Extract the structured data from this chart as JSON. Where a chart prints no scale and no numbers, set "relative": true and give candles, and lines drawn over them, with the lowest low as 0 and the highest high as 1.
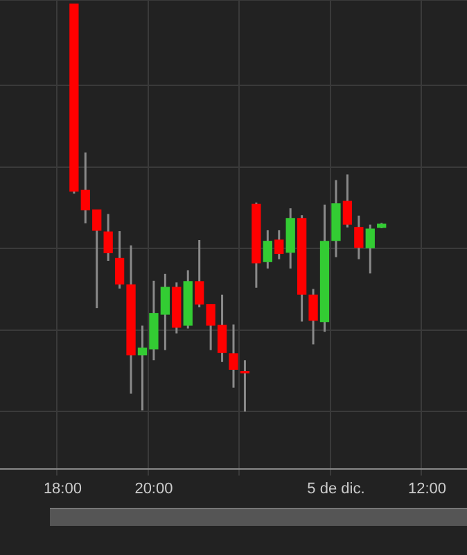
{
  "chart_data": {
    "type": "candlestick",
    "relative": true,
    "grid": true,
    "categories": [
      null,
      null,
      null,
      null,
      null,
      "18:00",
      null,
      null,
      null,
      null,
      null,
      null,
      null,
      "20:00",
      null,
      null,
      null,
      null,
      null,
      null,
      null,
      null,
      null,
      null,
      null,
      null,
      null,
      null,
      null,
      "5 de dic.",
      null,
      null,
      null,
      null,
      null,
      null,
      null,
      "12:00",
      null,
      null,
      null
    ],
    "ohlc": [
      null,
      null,
      null,
      null,
      null,
      null,
      [
        1,
        1,
        0.535,
        0.541
      ],
      [
        0.543,
        0.636,
        0.462,
        0.495
      ],
      [
        0.495,
        0.495,
        0.254,
        0.445
      ],
      [
        0.441,
        0.485,
        0.37,
        0.39
      ],
      [
        0.376,
        0.443,
        0.302,
        0.313
      ],
      [
        0.311,
        0.408,
        0.044,
        0.139
      ],
      [
        0.139,
        0.211,
        0.003,
        0.156
      ],
      [
        0.154,
        0.321,
        0.126,
        0.241
      ],
      [
        0.239,
        0.338,
        0.151,
        0.305
      ],
      [
        0.305,
        0.317,
        0.192,
        0.207
      ],
      [
        0.212,
        0.347,
        0.204,
        0.319
      ],
      [
        0.319,
        0.421,
        0.256,
        0.264
      ],
      [
        0.263,
        0.263,
        0.151,
        0.212
      ],
      [
        0.212,
        0.287,
        0.122,
        0.145
      ],
      [
        0.142,
        0.214,
        0.059,
        0.104
      ],
      [
        0.098,
        0.126,
        0,
        0.095
      ],
      [
        0.509,
        0.513,
        0.304,
        0.365
      ],
      [
        0.368,
        0.445,
        0.351,
        0.418
      ],
      [
        0.421,
        0.445,
        0.374,
        0.388
      ],
      [
        0.391,
        0.499,
        0.351,
        0.474
      ],
      [
        0.474,
        0.482,
        0.221,
        0.288
      ],
      [
        0.286,
        0.301,
        0.165,
        0.224
      ],
      [
        0.221,
        0.508,
        0.196,
        0.418
      ],
      [
        0.42,
        0.568,
        0.379,
        0.51
      ],
      [
        0.516,
        0.582,
        0.452,
        0.46
      ],
      [
        0.452,
        0.481,
        0.374,
        0.403
      ],
      [
        0.402,
        0.459,
        0.339,
        0.448
      ],
      [
        0.452,
        0.463,
        0.45,
        0.46
      ],
      null,
      null,
      null,
      null,
      null,
      null,
      null
    ]
  }
}
